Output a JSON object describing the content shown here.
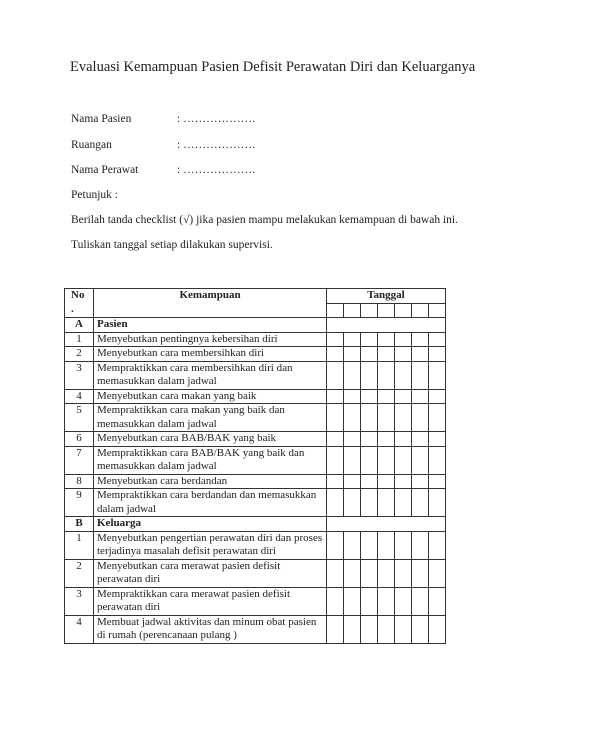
{
  "title": "Evaluasi Kemampuan Pasien Defisit Perawatan Diri dan Keluarganya",
  "fields": [
    {
      "label": "Nama Pasien",
      "value": ": ………………."
    },
    {
      "label": "Ruangan",
      "value": ": ………………."
    },
    {
      "label": "Nama Perawat",
      "value": ": ………………."
    }
  ],
  "petunjuk": "Petunjuk :",
  "instructions": [
    "Berilah tanda checklist (√) jika pasien mampu melakukan kemampuan di bawah ini.",
    "Tuliskan tanggal setiap dilakukan supervisi."
  ],
  "table": {
    "headers": {
      "no": "No\n.",
      "kemampuan": "Kemampuan",
      "tanggal": "Tanggal"
    },
    "date_columns": 7,
    "sections": [
      {
        "code": "A",
        "name": "Pasien",
        "items": [
          {
            "no": "1",
            "text": "Menyebutkan pentingnya kebersihan diri"
          },
          {
            "no": "2",
            "text": "Menyebutkan cara membersihkan diri"
          },
          {
            "no": "3",
            "text": "Mempraktikkan cara membersihkan diri dan memasukkan dalam jadwal"
          },
          {
            "no": "4",
            "text": "Menyebutkan cara makan yang baik"
          },
          {
            "no": "5",
            "text": "Mempraktikkan cara makan yang baik dan memasukkan dalam jadwal"
          },
          {
            "no": "6",
            "text": "Menyebutkan cara BAB/BAK yang baik"
          },
          {
            "no": "7",
            "text": "Mempraktikkan cara BAB/BAK yang baik dan memasukkan dalam jadwal"
          },
          {
            "no": "8",
            "text": "Menyebutkan cara berdandan"
          },
          {
            "no": "9",
            "text": "Mempraktikkan cara berdandan dan memasukkan dalam jadwal"
          }
        ]
      },
      {
        "code": "B",
        "name": "Keluarga",
        "items": [
          {
            "no": "1",
            "text": "Menyebutkan pengertian perawatan diri dan proses terjadinya masalah defisit perawatan diri"
          },
          {
            "no": "2",
            "text": "Menyebutkan cara merawat pasien defisit perawatan diri"
          },
          {
            "no": "3",
            "text": "Mempraktikkan cara merawat pasien defisit perawatan diri"
          },
          {
            "no": "4",
            "text": "Membuat jadwal aktivitas dan minum obat pasien di rumah (perencanaan pulang )"
          }
        ]
      }
    ]
  }
}
